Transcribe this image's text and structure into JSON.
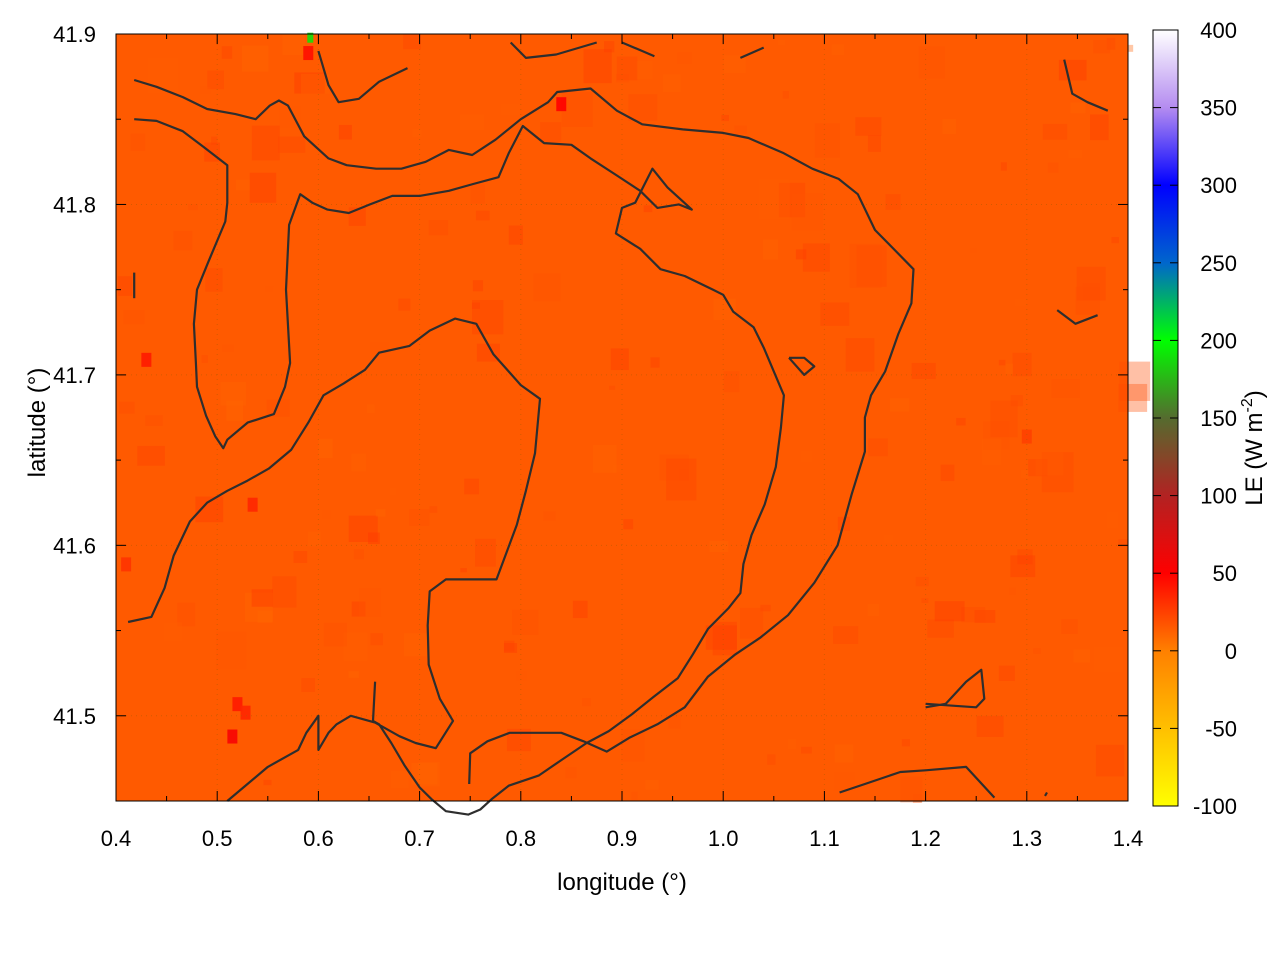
{
  "chart_data": {
    "type": "heatmap",
    "title": "",
    "xlabel": "longitude (°)",
    "ylabel": "latitude (°)",
    "xlim": [
      0.4,
      1.4
    ],
    "ylim": [
      41.45,
      41.9
    ],
    "x_ticks": [
      "0.4",
      "0.5",
      "0.6",
      "0.7",
      "0.8",
      "0.9",
      "1.0",
      "1.1",
      "1.2",
      "1.3",
      "1.4"
    ],
    "y_ticks": [
      "41.5",
      "41.6",
      "41.7",
      "41.8",
      "41.9"
    ],
    "grid": true,
    "field_background_value": 15,
    "colorbar": {
      "label": "LE (W m",
      "label_superscript": "-2",
      "label_close": ")",
      "range": [
        -100,
        400
      ],
      "ticks": [
        "400",
        "350",
        "300",
        "250",
        "200",
        "150",
        "100",
        "50",
        "0",
        "-50",
        "-100"
      ],
      "palette": [
        {
          "value": -100,
          "color": "#ffff00"
        },
        {
          "value": 0,
          "color": "#ff8000"
        },
        {
          "value": 50,
          "color": "#ff0000"
        },
        {
          "value": 100,
          "color": "#b22222"
        },
        {
          "value": 150,
          "color": "#556b2f"
        },
        {
          "value": 200,
          "color": "#00ff00"
        },
        {
          "value": 250,
          "color": "#0066cc"
        },
        {
          "value": 300,
          "color": "#0000ff"
        },
        {
          "value": 350,
          "color": "#b48cf0"
        },
        {
          "value": 400,
          "color": "#ffffff"
        }
      ]
    },
    "hotspots": [
      {
        "lon": 0.59,
        "lat": 41.89,
        "value": 45
      },
      {
        "lon": 0.592,
        "lat": 41.899,
        "value": 190
      },
      {
        "lon": 0.84,
        "lat": 41.86,
        "value": 50
      },
      {
        "lon": 0.43,
        "lat": 41.71,
        "value": 40
      },
      {
        "lon": 0.41,
        "lat": 41.59,
        "value": 30
      },
      {
        "lon": 0.535,
        "lat": 41.625,
        "value": 35
      },
      {
        "lon": 0.52,
        "lat": 41.508,
        "value": 40
      },
      {
        "lon": 0.528,
        "lat": 41.503,
        "value": 35
      },
      {
        "lon": 0.515,
        "lat": 41.489,
        "value": 55
      },
      {
        "lon": 1.3,
        "lat": 41.665,
        "value": 25
      }
    ],
    "contours": [
      [
        [
          0.418,
          41.873
        ],
        [
          0.44,
          41.869
        ],
        [
          0.466,
          41.863
        ],
        [
          0.49,
          41.856
        ],
        [
          0.518,
          41.853
        ],
        [
          0.538,
          41.85
        ],
        [
          0.552,
          41.858
        ],
        [
          0.561,
          41.861
        ],
        [
          0.57,
          41.858
        ],
        [
          0.586,
          41.84
        ],
        [
          0.61,
          41.827
        ],
        [
          0.628,
          41.823
        ],
        [
          0.657,
          41.821
        ],
        [
          0.682,
          41.821
        ],
        [
          0.706,
          41.825
        ],
        [
          0.729,
          41.832
        ],
        [
          0.752,
          41.829
        ],
        [
          0.775,
          41.838
        ],
        [
          0.8,
          41.85
        ],
        [
          0.827,
          41.86
        ],
        [
          0.836,
          41.866
        ],
        [
          0.869,
          41.868
        ],
        [
          0.895,
          41.855
        ],
        [
          0.92,
          41.847
        ],
        [
          0.96,
          41.844
        ],
        [
          1.0,
          41.842
        ],
        [
          1.025,
          41.839
        ],
        [
          1.06,
          41.83
        ],
        [
          1.088,
          41.821
        ],
        [
          1.114,
          41.815
        ],
        [
          1.133,
          41.806
        ],
        [
          1.15,
          41.785
        ],
        [
          1.17,
          41.773
        ],
        [
          1.188,
          41.762
        ],
        [
          1.186,
          41.742
        ],
        [
          1.173,
          41.724
        ],
        [
          1.16,
          41.702
        ],
        [
          1.146,
          41.688
        ],
        [
          1.14,
          41.675
        ],
        [
          1.14,
          41.655
        ],
        [
          1.127,
          41.63
        ],
        [
          1.113,
          41.6
        ],
        [
          1.09,
          41.578
        ],
        [
          1.064,
          41.559
        ],
        [
          1.037,
          41.546
        ],
        [
          1.012,
          41.536
        ],
        [
          0.985,
          41.523
        ],
        [
          0.962,
          41.505
        ],
        [
          0.935,
          41.495
        ],
        [
          0.907,
          41.487
        ],
        [
          0.885,
          41.479
        ],
        [
          0.862,
          41.485
        ],
        [
          0.84,
          41.49
        ],
        [
          0.789,
          41.49
        ],
        [
          0.767,
          41.485
        ],
        [
          0.75,
          41.478
        ],
        [
          0.749,
          41.46
        ]
      ],
      [
        [
          0.418,
          41.85
        ],
        [
          0.44,
          41.849
        ],
        [
          0.466,
          41.843
        ],
        [
          0.486,
          41.834
        ],
        [
          0.51,
          41.823
        ],
        [
          0.51,
          41.801
        ],
        [
          0.508,
          41.79
        ],
        [
          0.491,
          41.766
        ],
        [
          0.48,
          41.75
        ],
        [
          0.477,
          41.73
        ],
        [
          0.479,
          41.707
        ],
        [
          0.48,
          41.693
        ],
        [
          0.489,
          41.676
        ],
        [
          0.498,
          41.664
        ],
        [
          0.506,
          41.657
        ],
        [
          0.51,
          41.662
        ],
        [
          0.53,
          41.672
        ],
        [
          0.556,
          41.677
        ],
        [
          0.567,
          41.693
        ],
        [
          0.572,
          41.707
        ],
        [
          0.568,
          41.75
        ],
        [
          0.571,
          41.788
        ],
        [
          0.582,
          41.806
        ],
        [
          0.594,
          41.801
        ],
        [
          0.609,
          41.797
        ],
        [
          0.63,
          41.795
        ],
        [
          0.651,
          41.8
        ],
        [
          0.673,
          41.805
        ],
        [
          0.7,
          41.805
        ],
        [
          0.729,
          41.808
        ],
        [
          0.753,
          41.812
        ],
        [
          0.778,
          41.816
        ],
        [
          0.788,
          41.83
        ],
        [
          0.802,
          41.846
        ],
        [
          0.823,
          41.836
        ],
        [
          0.85,
          41.835
        ],
        [
          0.869,
          41.827
        ],
        [
          0.895,
          41.817
        ],
        [
          0.918,
          41.808
        ],
        [
          0.935,
          41.798
        ],
        [
          0.956,
          41.8
        ],
        [
          0.969,
          41.797
        ],
        [
          0.945,
          41.81
        ],
        [
          0.93,
          41.821
        ],
        [
          0.913,
          41.801
        ],
        [
          0.9,
          41.798
        ],
        [
          0.894,
          41.783
        ],
        [
          0.918,
          41.774
        ],
        [
          0.938,
          41.762
        ],
        [
          0.962,
          41.758
        ],
        [
          0.99,
          41.75
        ],
        [
          1.0,
          41.747
        ],
        [
          1.01,
          41.737
        ],
        [
          1.03,
          41.728
        ],
        [
          1.04,
          41.716
        ],
        [
          1.06,
          41.688
        ],
        [
          1.057,
          41.669
        ],
        [
          1.052,
          41.646
        ],
        [
          1.041,
          41.624
        ],
        [
          1.028,
          41.606
        ],
        [
          1.02,
          41.589
        ],
        [
          1.017,
          41.572
        ],
        [
          1.005,
          41.563
        ],
        [
          0.985,
          41.551
        ],
        [
          0.97,
          41.536
        ],
        [
          0.955,
          41.522
        ],
        [
          0.931,
          41.511
        ],
        [
          0.91,
          41.501
        ],
        [
          0.887,
          41.491
        ],
        [
          0.865,
          41.484
        ],
        [
          0.84,
          41.474
        ],
        [
          0.818,
          41.465
        ],
        [
          0.788,
          41.459
        ],
        [
          0.771,
          41.451
        ],
        [
          0.76,
          41.445
        ],
        [
          0.748,
          41.442
        ],
        [
          0.726,
          41.444
        ],
        [
          0.712,
          41.451
        ],
        [
          0.7,
          41.458
        ],
        [
          0.685,
          41.471
        ],
        [
          0.672,
          41.484
        ],
        [
          0.66,
          41.495
        ],
        [
          0.654,
          41.497
        ],
        [
          0.656,
          41.52
        ]
      ],
      [
        [
          0.412,
          41.555
        ],
        [
          0.435,
          41.558
        ],
        [
          0.448,
          41.575
        ],
        [
          0.457,
          41.594
        ],
        [
          0.473,
          41.614
        ],
        [
          0.49,
          41.625
        ],
        [
          0.51,
          41.632
        ],
        [
          0.53,
          41.638
        ],
        [
          0.551,
          41.645
        ],
        [
          0.573,
          41.656
        ],
        [
          0.59,
          41.672
        ],
        [
          0.605,
          41.688
        ],
        [
          0.625,
          41.695
        ],
        [
          0.646,
          41.703
        ],
        [
          0.66,
          41.713
        ],
        [
          0.69,
          41.717
        ],
        [
          0.71,
          41.726
        ],
        [
          0.735,
          41.733
        ],
        [
          0.756,
          41.73
        ],
        [
          0.773,
          41.712
        ],
        [
          0.8,
          41.694
        ],
        [
          0.819,
          41.686
        ],
        [
          0.814,
          41.654
        ],
        [
          0.805,
          41.632
        ],
        [
          0.796,
          41.612
        ],
        [
          0.776,
          41.58
        ],
        [
          0.75,
          41.58
        ],
        [
          0.726,
          41.58
        ],
        [
          0.71,
          41.573
        ],
        [
          0.708,
          41.553
        ],
        [
          0.709,
          41.53
        ],
        [
          0.72,
          41.51
        ],
        [
          0.733,
          41.497
        ],
        [
          0.716,
          41.481
        ],
        [
          0.696,
          41.484
        ],
        [
          0.68,
          41.488
        ],
        [
          0.656,
          41.496
        ],
        [
          0.632,
          41.5
        ],
        [
          0.618,
          41.495
        ],
        [
          0.61,
          41.49
        ],
        [
          0.6,
          41.48
        ],
        [
          0.6,
          41.5
        ],
        [
          0.588,
          41.49
        ],
        [
          0.58,
          41.48
        ],
        [
          0.55,
          41.47
        ],
        [
          0.51,
          41.45
        ]
      ],
      [
        [
          0.418,
          41.76
        ],
        [
          0.418,
          41.745
        ]
      ],
      [
        [
          1.065,
          41.71
        ],
        [
          1.08,
          41.71
        ],
        [
          1.09,
          41.705
        ],
        [
          1.08,
          41.7
        ],
        [
          1.065,
          41.71
        ]
      ],
      [
        [
          0.6,
          41.89
        ],
        [
          0.61,
          41.87
        ],
        [
          0.62,
          41.86
        ],
        [
          0.64,
          41.862
        ],
        [
          0.66,
          41.872
        ],
        [
          0.688,
          41.88
        ]
      ],
      [
        [
          0.79,
          41.895
        ],
        [
          0.805,
          41.886
        ],
        [
          0.835,
          41.888
        ],
        [
          0.875,
          41.895
        ]
      ],
      [
        [
          0.9,
          41.895
        ],
        [
          0.92,
          41.89
        ],
        [
          0.932,
          41.887
        ]
      ],
      [
        [
          1.017,
          41.886
        ],
        [
          1.04,
          41.892
        ]
      ],
      [
        [
          1.337,
          41.885
        ],
        [
          1.345,
          41.865
        ],
        [
          1.36,
          41.86
        ],
        [
          1.38,
          41.855
        ]
      ],
      [
        [
          1.33,
          41.738
        ],
        [
          1.348,
          41.73
        ],
        [
          1.37,
          41.735
        ]
      ],
      [
        [
          1.2,
          41.505
        ],
        [
          1.22,
          41.507
        ],
        [
          1.24,
          41.52
        ],
        [
          1.255,
          41.527
        ],
        [
          1.258,
          41.51
        ],
        [
          1.25,
          41.505
        ],
        [
          1.2,
          41.507
        ]
      ],
      [
        [
          1.115,
          41.455
        ],
        [
          1.14,
          41.46
        ],
        [
          1.175,
          41.467
        ],
        [
          1.2,
          41.468
        ],
        [
          1.24,
          41.47
        ],
        [
          1.268,
          41.452
        ]
      ],
      [
        [
          1.318,
          41.453
        ],
        [
          1.32,
          41.455
        ]
      ]
    ]
  }
}
